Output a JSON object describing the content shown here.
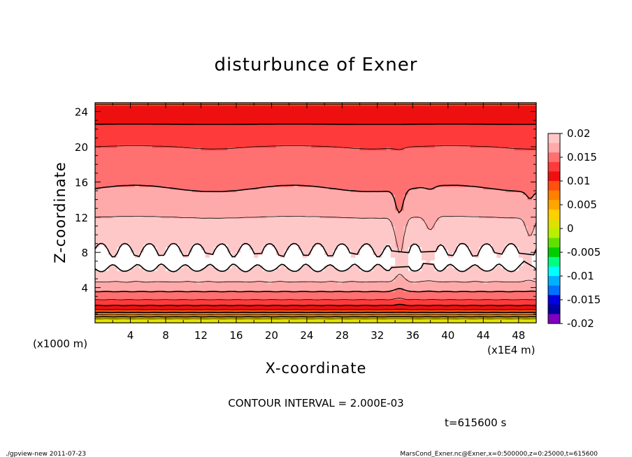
{
  "chart_data": {
    "type": "heatmap",
    "title": "disturbunce of Exner",
    "xlabel": "X-coordinate",
    "ylabel": "Z-coordinate",
    "x_unit": "(x1E4 m)",
    "y_unit": "(x1000 m)",
    "xlim": [
      0,
      50
    ],
    "ylim": [
      0,
      25
    ],
    "x_ticks": [
      "4",
      "8",
      "12",
      "16",
      "20",
      "24",
      "28",
      "32",
      "36",
      "40",
      "44",
      "48"
    ],
    "y_ticks": [
      "4",
      "8",
      "12",
      "16",
      "20",
      "24"
    ],
    "colorbar": {
      "labels": [
        "0.02",
        "0.015",
        "0.01",
        "0.005",
        "0",
        "-0.005",
        "-0.01",
        "-0.015",
        "-0.02"
      ],
      "levels": [
        0.02,
        0.015,
        0.01,
        0.005,
        0,
        -0.005,
        -0.01,
        -0.015,
        -0.02
      ],
      "min": -0.02,
      "max": 0.02,
      "interval": 0.002,
      "colors_top_to_bottom": [
        "#ffc8c8",
        "#ffaaaa",
        "#ff7070",
        "#ff3a3a",
        "#ee1010",
        "#ff5010",
        "#ff8000",
        "#ffa500",
        "#ffd000",
        "#e0e000",
        "#b8f000",
        "#60e000",
        "#00cc00",
        "#00ff80",
        "#00ffff",
        "#00b0ff",
        "#0070ff",
        "#0000e0",
        "#0000a0",
        "#8000c0"
      ]
    },
    "profile_z": [
      0.3,
      0.8,
      1.3,
      1.8,
      2.3,
      2.8,
      3.3,
      3.8,
      4.3,
      4.8,
      5.3,
      5.8,
      7.0,
      9.0,
      10.0,
      11.0,
      12.0,
      13.0,
      14.5,
      16.0,
      17.0,
      18.5,
      20.0,
      21.0,
      22.0,
      23.0,
      24.0,
      25.0
    ],
    "profile_values": [
      0.0005,
      0.005,
      0.009,
      0.0115,
      0.013,
      0.0145,
      0.0155,
      0.0165,
      0.0175,
      0.0182,
      0.019,
      0.0198,
      0.0205,
      0.0198,
      0.0192,
      0.0186,
      0.018,
      0.0172,
      0.0164,
      0.0156,
      0.015,
      0.0145,
      0.014,
      0.0134,
      0.0125,
      0.0116,
      0.0108,
      0.0098
    ],
    "feature_x": 34.5,
    "contour_interval_text": "CONTOUR INTERVAL = 2.000E-03",
    "time_text": "t=615600 s"
  },
  "footer": {
    "left": "./gpview-new  2011-07-23",
    "right": "MarsCond_Exner.nc@Exner,x=0:500000,z=0:25000,t=615600"
  }
}
